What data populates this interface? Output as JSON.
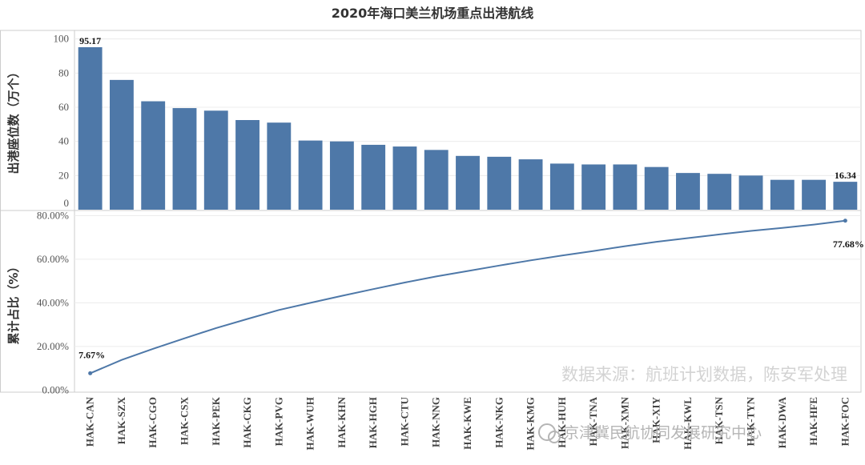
{
  "chart_data": {
    "type": "bar+line",
    "title": "2020年海口美兰机场重点出港航线",
    "categories": [
      "HAK-CAN",
      "HAK-SZX",
      "HAK-CGO",
      "HAK-CSX",
      "HAK-PEK",
      "HAK-CKG",
      "HAK-PVG",
      "HAK-WUH",
      "HAK-KHN",
      "HAK-HGH",
      "HAK-CTU",
      "HAK-NNG",
      "HAK-KWE",
      "HAK-NKG",
      "HAK-KMG",
      "HAK-HUH",
      "HAK-TNA",
      "HAK-XMN",
      "HAK-XIY",
      "HAK-KWL",
      "HAK-TSN",
      "HAK-TYN",
      "HAK-DWA",
      "HAK-HFE",
      "HAK-FOC"
    ],
    "bar": {
      "ylabel": "出港座位数（万个）",
      "ylim": [
        0,
        105
      ],
      "yticks": [
        "0",
        "20",
        "40",
        "60",
        "80",
        "100"
      ],
      "values": [
        95.17,
        76,
        63.5,
        59.5,
        58,
        52.5,
        51,
        40.5,
        40,
        38,
        37,
        35,
        31.5,
        31,
        29.5,
        27,
        26.5,
        26.5,
        25,
        21.5,
        21,
        20,
        17.5,
        17.5,
        16.34
      ],
      "color": "#4e78a8",
      "labels": [
        {
          "index": 0,
          "text": "95.17"
        },
        {
          "index": 24,
          "text": "16.34"
        }
      ]
    },
    "line": {
      "ylabel": "累计占比（%）",
      "ylim": [
        -1,
        82
      ],
      "yticks": [
        "0.00%",
        "20.00%",
        "40.00%",
        "60.00%",
        "80.00%"
      ],
      "values": [
        7.67,
        13.8,
        18.9,
        23.7,
        28.4,
        32.6,
        36.7,
        40.0,
        43.2,
        46.3,
        49.3,
        52.1,
        54.6,
        57.1,
        59.5,
        61.7,
        63.8,
        66.0,
        68.0,
        69.7,
        71.4,
        73.0,
        74.4,
        75.9,
        77.68
      ],
      "color": "#4e78a8",
      "labels": [
        {
          "index": 0,
          "text": "7.67%"
        },
        {
          "index": 24,
          "text": "77.68%"
        }
      ]
    },
    "grid": true,
    "legend": "none"
  },
  "source_note": "数据来源：航班计划数据，陈安军处理",
  "watermark": "京津冀民航协同发展研究中心",
  "colors": {
    "bar": "#4e78a8",
    "line": "#4e78a8",
    "grid": "#ececec",
    "frame": "#cccccc"
  }
}
